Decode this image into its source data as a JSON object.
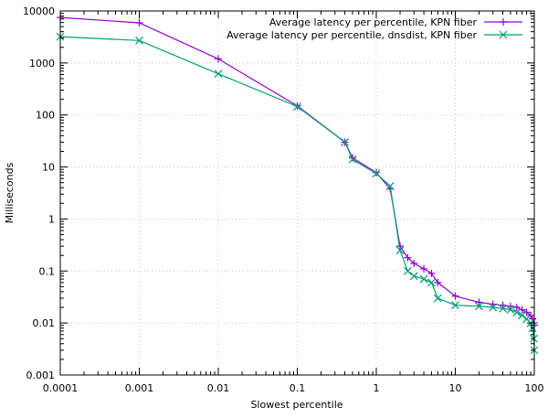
{
  "chart_data": {
    "type": "line",
    "title": "",
    "xlabel": "Slowest percentile",
    "ylabel": "Milliseconds",
    "xscale": "log",
    "yscale": "log",
    "xlim": [
      0.0001,
      100
    ],
    "ylim": [
      0.001,
      10000
    ],
    "grid": true,
    "legend_position": "top-right",
    "xticks": [
      "0.0001",
      "0.001",
      "0.01",
      "0.1",
      "1",
      "10",
      "100"
    ],
    "yticks": [
      "0.001",
      "0.01",
      "0.1",
      "1",
      "10",
      "100",
      "1000",
      "10000"
    ],
    "series": [
      {
        "name": "Average latency per percentile, KPN fiber",
        "color": "#9400d3",
        "marker": "plus",
        "x": [
          0.0001,
          0.001,
          0.01,
          0.1,
          0.4,
          0.5,
          1,
          1.5,
          2,
          2.5,
          3,
          4,
          5,
          6,
          10,
          20,
          30,
          40,
          50,
          60,
          70,
          80,
          90,
          95,
          99,
          100
        ],
        "y": [
          7500,
          5900,
          1200,
          150,
          30,
          15,
          7.8,
          3.8,
          0.3,
          0.18,
          0.14,
          0.11,
          0.09,
          0.06,
          0.033,
          0.025,
          0.023,
          0.022,
          0.021,
          0.02,
          0.018,
          0.016,
          0.014,
          0.012,
          0.01,
          0.009
        ]
      },
      {
        "name": "Average latency per percentile, dnsdist, KPN fiber",
        "color": "#009e73",
        "marker": "cross",
        "x": [
          0.0001,
          0.001,
          0.01,
          0.1,
          0.4,
          0.5,
          1,
          1.5,
          2,
          2.5,
          3,
          4,
          5,
          6,
          10,
          20,
          30,
          40,
          50,
          60,
          70,
          80,
          90,
          95,
          99,
          100
        ],
        "y": [
          3200,
          2700,
          620,
          145,
          30,
          14,
          7.5,
          4.3,
          0.25,
          0.1,
          0.08,
          0.07,
          0.06,
          0.03,
          0.022,
          0.021,
          0.02,
          0.019,
          0.018,
          0.016,
          0.014,
          0.012,
          0.01,
          0.008,
          0.005,
          0.003
        ]
      }
    ]
  }
}
